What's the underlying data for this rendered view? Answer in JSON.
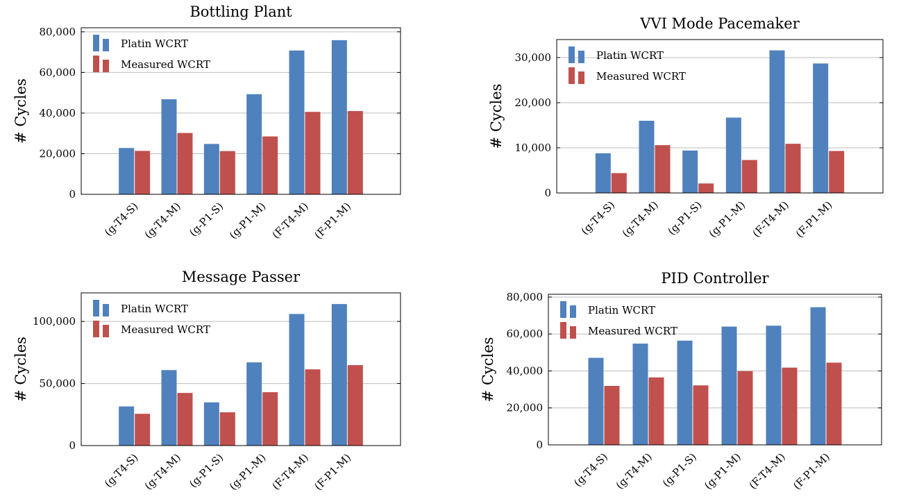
{
  "chart_data": [
    {
      "type": "bar",
      "title": "Bottling Plant",
      "ylabel": "# Cycles",
      "xlabel": "",
      "categories": [
        "(g-T4-S)",
        "(g-T4-M)",
        "(g-P1-S)",
        "(g-P1-M)",
        "(F-T4-M)",
        "(F-P1-M)"
      ],
      "series": [
        {
          "name": "Platin WCRT",
          "color": "#4f81bd",
          "values": [
            22800,
            46800,
            24800,
            49300,
            70800,
            75900
          ]
        },
        {
          "name": "Measured WCRT",
          "color": "#c0504d",
          "values": [
            21400,
            30200,
            21300,
            28500,
            40600,
            41000
          ]
        }
      ],
      "yticks": [
        0,
        20000,
        40000,
        60000,
        80000
      ],
      "ytick_labels": [
        "0",
        "20,000",
        "40,000",
        "60,000",
        "80,000"
      ],
      "ylim": [
        0,
        82000
      ],
      "grid": true,
      "legend": "top-left"
    },
    {
      "type": "bar",
      "title": "VVI Mode Pacemaker",
      "ylabel": "# Cycles",
      "xlabel": "",
      "categories": [
        "(g-T4-S)",
        "(g-T4-M)",
        "(g-P1-S)",
        "(g-P1-M)",
        "(F-T4-M)",
        "(F-P1-M)"
      ],
      "series": [
        {
          "name": "Platin WCRT",
          "color": "#4f81bd",
          "values": [
            8800,
            16000,
            9400,
            16700,
            31600,
            28700
          ]
        },
        {
          "name": "Measured WCRT",
          "color": "#c0504d",
          "values": [
            4400,
            10600,
            2100,
            7300,
            10900,
            9300
          ]
        }
      ],
      "yticks": [
        0,
        10000,
        20000,
        30000
      ],
      "ytick_labels": [
        "0",
        "10,000",
        "20,000",
        "30,000"
      ],
      "ylim": [
        0,
        34000
      ],
      "grid": true,
      "legend": "top-left"
    },
    {
      "type": "bar",
      "title": "Message Passer",
      "ylabel": "# Cycles",
      "xlabel": "",
      "categories": [
        "(g-T4-S)",
        "(g-T4-M)",
        "(g-P1-S)",
        "(g-P1-M)",
        "(F-T4-M)",
        "(F-P1-M)"
      ],
      "series": [
        {
          "name": "Platin WCRT",
          "color": "#4f81bd",
          "values": [
            31500,
            60800,
            34800,
            67000,
            106000,
            114000
          ]
        },
        {
          "name": "Measured WCRT",
          "color": "#c0504d",
          "values": [
            25600,
            42400,
            26800,
            43000,
            61400,
            64800
          ]
        }
      ],
      "yticks": [
        0,
        50000,
        100000
      ],
      "ytick_labels": [
        "0",
        "50,000",
        "100,000"
      ],
      "ylim": [
        0,
        123000
      ],
      "grid": true,
      "legend": "top-left"
    },
    {
      "type": "bar",
      "title": "PID Controller",
      "ylabel": "# Cycles",
      "xlabel": "",
      "categories": [
        "(g-T4-S)",
        "(g-T4-M)",
        "(g-P1-S)",
        "(g-P1-M)",
        "(F-T4-M)",
        "(F-P1-M)"
      ],
      "series": [
        {
          "name": "Platin WCRT",
          "color": "#4f81bd",
          "values": [
            47100,
            54800,
            56400,
            64000,
            64500,
            74500
          ]
        },
        {
          "name": "Measured WCRT",
          "color": "#c0504d",
          "values": [
            31900,
            36500,
            32200,
            39900,
            41800,
            44500
          ]
        }
      ],
      "yticks": [
        0,
        20000,
        40000,
        60000,
        80000
      ],
      "ytick_labels": [
        "0",
        "20,000",
        "40,000",
        "60,000",
        "80,000"
      ],
      "ylim": [
        0,
        81500
      ],
      "grid": true,
      "legend": "top-left"
    }
  ]
}
